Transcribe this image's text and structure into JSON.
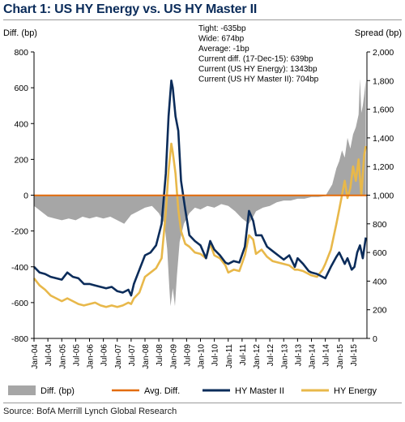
{
  "title": "Chart 1: US HY Energy vs. US HY Master II",
  "source": "Source: BofA Merrill Lynch Global Research",
  "chart_data": {
    "type": "area",
    "left_axis": {
      "label": "Diff. (bp)",
      "range": [
        -800,
        800
      ],
      "ticks": [
        "800",
        "600",
        "400",
        "200",
        "0",
        "-200",
        "-400",
        "-600",
        "-800"
      ]
    },
    "right_axis": {
      "label": "Spread (bp)",
      "range": [
        0,
        2000
      ],
      "ticks": [
        "2,000",
        "1,800",
        "1,600",
        "1,400",
        "1,200",
        "1,000",
        "800",
        "600",
        "400",
        "200",
        "0"
      ]
    },
    "x_ticks": [
      "Jan-04",
      "Jul-04",
      "Jan-05",
      "Jul-05",
      "Jan-06",
      "Jul-06",
      "Jan-07",
      "Jul-07",
      "Jan-08",
      "Jul-08",
      "Jan-09",
      "Jul-09",
      "Jan-10",
      "Jul-10",
      "Jan-11",
      "Jul-11",
      "Jan-12",
      "Jul-12",
      "Jan-13",
      "Jul-13",
      "Jan-14",
      "Jul-14",
      "Jan-15",
      "Jul-15"
    ],
    "x_range": [
      2004.0,
      2016.0
    ],
    "grid": false,
    "annotation": [
      "Tight: -635bp",
      "Wide: 674bp",
      "Average: -1bp",
      "Current diff. (17-Dec-15): 639bp",
      "Current (US HY Energy): 1343bp",
      "Current (US HY Master II): 704bp"
    ],
    "series": [
      {
        "name": "Diff. (bp)",
        "axis": "left",
        "color": "#a6a6a6",
        "x": [
          2004.0,
          2004.25,
          2004.5,
          2004.75,
          2005.0,
          2005.25,
          2005.5,
          2005.75,
          2006.0,
          2006.25,
          2006.5,
          2006.75,
          2007.0,
          2007.25,
          2007.5,
          2007.75,
          2008.0,
          2008.25,
          2008.5,
          2008.7,
          2008.8,
          2008.88,
          2008.92,
          2009.0,
          2009.08,
          2009.15,
          2009.25,
          2009.4,
          2009.6,
          2009.8,
          2010.0,
          2010.25,
          2010.5,
          2010.75,
          2011.0,
          2011.25,
          2011.5,
          2011.75,
          2011.9,
          2012.0,
          2012.25,
          2012.5,
          2012.75,
          2013.0,
          2013.25,
          2013.5,
          2013.75,
          2014.0,
          2014.25,
          2014.5,
          2014.75,
          2014.9,
          2015.0,
          2015.1,
          2015.2,
          2015.3,
          2015.4,
          2015.5,
          2015.6,
          2015.7,
          2015.75,
          2015.8,
          2015.85,
          2015.9,
          2015.96
        ],
        "values": [
          -60,
          -90,
          -120,
          -130,
          -140,
          -130,
          -140,
          -120,
          -130,
          -120,
          -130,
          -120,
          -140,
          -160,
          -110,
          -90,
          -70,
          -60,
          -100,
          -160,
          -300,
          -520,
          -620,
          -520,
          -620,
          -450,
          -260,
          -160,
          -100,
          -70,
          -80,
          -60,
          -70,
          -50,
          -60,
          -90,
          -130,
          -160,
          -120,
          -90,
          -70,
          -60,
          -40,
          -30,
          -30,
          -20,
          -20,
          -10,
          -10,
          -5,
          60,
          150,
          190,
          250,
          210,
          320,
          260,
          340,
          380,
          450,
          650,
          460,
          500,
          560,
          639
        ]
      },
      {
        "name": "Avg. Diff.",
        "axis": "left",
        "color": "#e36c0a",
        "value": -1
      },
      {
        "name": "HY Master II",
        "axis": "right",
        "color": "#0b2c5a",
        "x": [
          2004.0,
          2004.2,
          2004.4,
          2004.6,
          2004.8,
          2005.0,
          2005.2,
          2005.4,
          2005.6,
          2005.8,
          2006.0,
          2006.2,
          2006.4,
          2006.6,
          2006.8,
          2007.0,
          2007.2,
          2007.4,
          2007.5,
          2007.6,
          2007.8,
          2008.0,
          2008.2,
          2008.4,
          2008.6,
          2008.75,
          2008.85,
          2008.95,
          2009.0,
          2009.1,
          2009.2,
          2009.3,
          2009.45,
          2009.6,
          2009.8,
          2010.0,
          2010.2,
          2010.35,
          2010.5,
          2010.7,
          2010.9,
          2011.0,
          2011.2,
          2011.4,
          2011.6,
          2011.75,
          2011.9,
          2012.0,
          2012.2,
          2012.4,
          2012.6,
          2012.8,
          2013.0,
          2013.2,
          2013.4,
          2013.5,
          2013.7,
          2013.9,
          2014.0,
          2014.2,
          2014.4,
          2014.5,
          2014.7,
          2014.9,
          2015.0,
          2015.2,
          2015.3,
          2015.45,
          2015.55,
          2015.65,
          2015.75,
          2015.85,
          2015.96
        ],
        "values": [
          500,
          460,
          450,
          430,
          420,
          410,
          460,
          430,
          420,
          380,
          380,
          370,
          360,
          350,
          360,
          330,
          320,
          340,
          300,
          380,
          480,
          580,
          600,
          650,
          800,
          1150,
          1550,
          1800,
          1750,
          1550,
          1450,
          1100,
          900,
          720,
          680,
          650,
          560,
          680,
          620,
          580,
          530,
          520,
          540,
          530,
          640,
          890,
          820,
          720,
          720,
          640,
          610,
          580,
          550,
          580,
          500,
          560,
          520,
          470,
          460,
          450,
          430,
          420,
          500,
          570,
          600,
          520,
          560,
          480,
          500,
          600,
          650,
          560,
          704
        ]
      },
      {
        "name": "HY Energy",
        "axis": "right",
        "color": "#e8b84a",
        "x": [
          2004.0,
          2004.2,
          2004.4,
          2004.6,
          2004.8,
          2005.0,
          2005.2,
          2005.4,
          2005.6,
          2005.8,
          2006.0,
          2006.2,
          2006.4,
          2006.6,
          2006.8,
          2007.0,
          2007.2,
          2007.4,
          2007.5,
          2007.6,
          2007.8,
          2008.0,
          2008.2,
          2008.4,
          2008.6,
          2008.75,
          2008.85,
          2008.95,
          2009.0,
          2009.1,
          2009.2,
          2009.3,
          2009.45,
          2009.6,
          2009.8,
          2010.0,
          2010.2,
          2010.35,
          2010.5,
          2010.7,
          2010.9,
          2011.0,
          2011.2,
          2011.4,
          2011.6,
          2011.75,
          2011.9,
          2012.0,
          2012.2,
          2012.4,
          2012.6,
          2012.8,
          2013.0,
          2013.2,
          2013.4,
          2013.5,
          2013.7,
          2013.9,
          2014.0,
          2014.2,
          2014.4,
          2014.5,
          2014.7,
          2014.9,
          2015.0,
          2015.1,
          2015.2,
          2015.3,
          2015.4,
          2015.5,
          2015.6,
          2015.7,
          2015.8,
          2015.9,
          2015.96
        ],
        "values": [
          420,
          370,
          340,
          300,
          280,
          260,
          280,
          260,
          240,
          230,
          240,
          250,
          230,
          220,
          230,
          220,
          230,
          250,
          240,
          280,
          320,
          430,
          460,
          490,
          560,
          880,
          1170,
          1360,
          1300,
          1150,
          900,
          750,
          660,
          640,
          600,
          590,
          560,
          660,
          580,
          560,
          510,
          460,
          480,
          470,
          580,
          720,
          690,
          590,
          620,
          570,
          540,
          530,
          520,
          510,
          480,
          480,
          470,
          450,
          440,
          430,
          480,
          520,
          620,
          800,
          900,
          1000,
          1100,
          980,
          1050,
          1200,
          1100,
          1250,
          1000,
          1280,
          1343
        ]
      }
    ]
  }
}
